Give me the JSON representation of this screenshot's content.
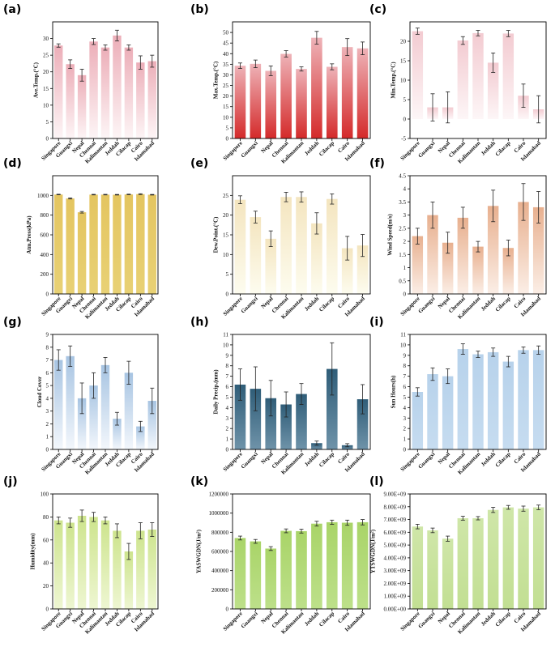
{
  "figure": {
    "categories": [
      "Singapore",
      "Guangxi",
      "Nepal",
      "Chennai",
      "Kalimantan",
      "Jeddah",
      "Cilacap",
      "Cairo",
      "Islamabad"
    ]
  },
  "chart_data": [
    {
      "type": "bar",
      "panel": "(a)",
      "ylabel": "Ave.Temp.(°C)",
      "ylim": [
        0,
        35
      ],
      "yticks": [
        0,
        5,
        10,
        15,
        20,
        25,
        30
      ],
      "values": [
        27.9,
        22.3,
        19.0,
        29.1,
        27.3,
        30.9,
        27.3,
        22.8,
        23.2
      ],
      "errors": [
        0.5,
        1.3,
        1.8,
        0.9,
        0.8,
        1.6,
        0.8,
        2.0,
        1.8
      ],
      "colors": [
        "#ecaeb8",
        "#fdf5f6"
      ]
    },
    {
      "type": "bar",
      "panel": "(b)",
      "ylabel": "Max.Temp.(°C)",
      "ylim": [
        0,
        55
      ],
      "yticks": [
        0,
        5,
        10,
        15,
        20,
        25,
        30,
        35,
        40,
        45,
        50
      ],
      "values": [
        34.3,
        35.2,
        31.9,
        39.9,
        32.8,
        47.5,
        33.8,
        43.1,
        42.5
      ],
      "errors": [
        1.3,
        1.8,
        2.3,
        1.5,
        1.0,
        3.0,
        1.4,
        4.0,
        3.0
      ],
      "colors": [
        "#eeb3b8",
        "#d42a2a"
      ]
    },
    {
      "type": "bar",
      "panel": "(c)",
      "ylabel": "Min.Temp.(°C)",
      "ylim": [
        -5,
        25
      ],
      "yticks": [
        -5,
        0,
        5,
        10,
        15,
        20
      ],
      "values": [
        22.6,
        3.0,
        3.0,
        20.2,
        22.1,
        14.5,
        22.0,
        6.0,
        2.5
      ],
      "errors": [
        0.8,
        3.5,
        4.0,
        1.0,
        0.7,
        2.5,
        0.8,
        3.0,
        3.5
      ],
      "colors": [
        "#f3cbd1",
        "#fdf6f7"
      ]
    },
    {
      "type": "bar",
      "panel": "(d)",
      "ylabel": "Atm.Press(kPa)",
      "ylim": [
        0,
        1200
      ],
      "yticks": [
        0,
        200,
        400,
        600,
        800,
        1000
      ],
      "values": [
        1009,
        969,
        829,
        1008,
        1008,
        1007,
        1010,
        1013,
        1007
      ],
      "errors": [
        3,
        5,
        8,
        3,
        3,
        3,
        3,
        4,
        3
      ],
      "colors": [
        "#e4c560",
        "#e8d175"
      ]
    },
    {
      "type": "bar",
      "panel": "(e)",
      "ylabel": "Dew.Point.(°C)",
      "ylim": [
        0,
        30
      ],
      "yticks": [
        0,
        5,
        10,
        15,
        20,
        25
      ],
      "values": [
        23.9,
        19.5,
        14.0,
        24.6,
        24.6,
        17.9,
        24.1,
        11.6,
        12.3
      ],
      "errors": [
        1.0,
        1.5,
        2.0,
        1.2,
        1.3,
        2.7,
        1.3,
        3.0,
        2.8
      ],
      "colors": [
        "#f4e5bf",
        "#fdfcef"
      ]
    },
    {
      "type": "bar",
      "panel": "(f)",
      "ylabel": "Wind Speed(m/s)",
      "ylim": [
        0,
        4.5
      ],
      "yticks": [
        0,
        0.5,
        1.0,
        1.5,
        2.0,
        2.5,
        3.0,
        3.5,
        4.0,
        4.5
      ],
      "values": [
        2.2,
        3.0,
        1.95,
        2.9,
        1.8,
        3.35,
        1.75,
        3.5,
        3.3
      ],
      "errors": [
        0.3,
        0.5,
        0.4,
        0.4,
        0.2,
        0.6,
        0.3,
        0.7,
        0.6
      ],
      "colors": [
        "#e8b08f",
        "#fbeee6"
      ]
    },
    {
      "type": "bar",
      "panel": "(g)",
      "ylabel": "Cloud Cover",
      "ylim": [
        0,
        9
      ],
      "yticks": [
        0,
        1,
        2,
        3,
        4,
        5,
        6,
        7,
        8,
        9
      ],
      "values": [
        7.0,
        7.3,
        4.0,
        5.0,
        6.6,
        2.4,
        6.0,
        1.8,
        3.8
      ],
      "errors": [
        0.8,
        0.8,
        1.2,
        1.0,
        0.6,
        0.5,
        0.9,
        0.4,
        1.0
      ],
      "colors": [
        "#a7c4e2",
        "#f3f7fc"
      ]
    },
    {
      "type": "bar",
      "panel": "(h)",
      "ylabel": "Daily Precip.(mm)",
      "ylim": [
        0,
        11
      ],
      "yticks": [
        0,
        1,
        2,
        3,
        4,
        5,
        6,
        7,
        8,
        9,
        10,
        11
      ],
      "values": [
        6.2,
        5.8,
        4.9,
        4.3,
        5.3,
        0.6,
        7.7,
        0.4,
        4.8
      ],
      "errors": [
        1.5,
        2.1,
        1.7,
        1.2,
        1.0,
        0.2,
        2.5,
        0.15,
        1.4
      ],
      "colors": [
        "#2f5d78",
        "#6f93a9"
      ]
    },
    {
      "type": "bar",
      "panel": "(i)",
      "ylabel": "Sun Hours(h)",
      "ylim": [
        0,
        11
      ],
      "yticks": [
        0,
        1,
        2,
        3,
        4,
        5,
        6,
        7,
        8,
        9,
        10,
        11
      ],
      "values": [
        5.5,
        7.2,
        7.0,
        9.6,
        9.1,
        9.3,
        8.4,
        9.5,
        9.5
      ],
      "errors": [
        0.4,
        0.6,
        0.7,
        0.5,
        0.3,
        0.4,
        0.5,
        0.3,
        0.4
      ],
      "colors": [
        "#b7d2eb",
        "#c6dcf0"
      ]
    },
    {
      "type": "bar",
      "panel": "(j)",
      "ylabel": "Humidity(mm)",
      "ylim": [
        0,
        100
      ],
      "yticks": [
        0,
        20,
        40,
        60,
        80,
        100
      ],
      "values": [
        77,
        75,
        81,
        80,
        77,
        68,
        50,
        68,
        69
      ],
      "errors": [
        3,
        4,
        5,
        4,
        3,
        6,
        7,
        7,
        6
      ],
      "colors": [
        "#cde48d",
        "#eef6d2"
      ]
    },
    {
      "type": "bar",
      "panel": "(k)",
      "ylabel": "YASWGDN(J/m²)",
      "ylim": [
        0,
        1200000
      ],
      "yticks": [
        0,
        200000,
        400000,
        600000,
        800000,
        1000000,
        1200000
      ],
      "ytick_labels": [
        "0",
        "200000",
        "400000",
        "600000",
        "800000",
        "1000000",
        "1200000"
      ],
      "values": [
        740000,
        705000,
        630000,
        815000,
        812000,
        890000,
        905000,
        900000,
        905000
      ],
      "errors": [
        20000,
        20000,
        20000,
        20000,
        20000,
        25000,
        22000,
        27000,
        28000
      ],
      "colors": [
        "#a9d468",
        "#bde08a"
      ]
    },
    {
      "type": "bar",
      "panel": "(l)",
      "ylabel": "YTSWGDN(J/m²)",
      "ylim": [
        0,
        9000000000
      ],
      "yticks": [
        0,
        1000000000,
        2000000000,
        3000000000,
        4000000000,
        5000000000,
        6000000000,
        7000000000,
        8000000000,
        9000000000
      ],
      "ytick_labels": [
        "0.00E+00",
        "1.00E+09",
        "2.00E+09",
        "3.00E+09",
        "4.00E+09",
        "5.00E+09",
        "6.00E+09",
        "7.00E+09",
        "8.00E+09",
        "9.00E+09"
      ],
      "values": [
        6450000000,
        6150000000,
        5500000000,
        7100000000,
        7100000000,
        7750000000,
        7950000000,
        7850000000,
        7950000000
      ],
      "errors": [
        180000000,
        180000000,
        200000000,
        150000000,
        130000000,
        200000000,
        150000000,
        200000000,
        180000000
      ],
      "colors": [
        "#cfe6a8",
        "#c2df93"
      ]
    }
  ]
}
